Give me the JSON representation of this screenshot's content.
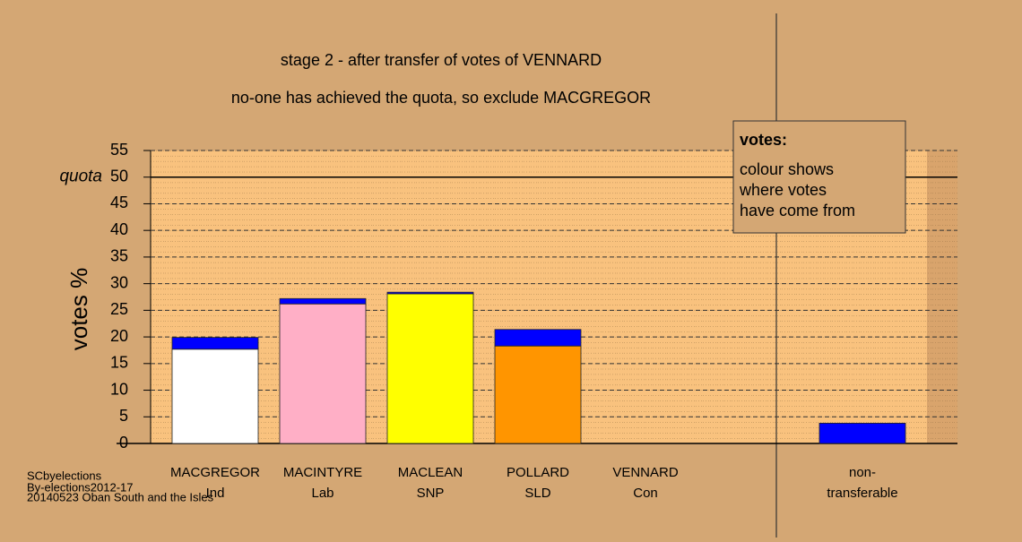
{
  "chart_data": {
    "type": "stacked-bar",
    "title": "stage 2 - after transfer of votes of VENNARD",
    "subtitle": "no-one has achieved the quota, so exclude MACGREGOR",
    "y_label": "votes %",
    "categories": [
      [
        "MACGREGOR",
        "Ind"
      ],
      [
        "MACINTYRE",
        "Lab"
      ],
      [
        "MACLEAN",
        "SNP"
      ],
      [
        "POLLARD",
        "SLD"
      ],
      [
        "VENNARD",
        "Con"
      ],
      [
        "non-",
        "transferable"
      ]
    ],
    "series": [
      {
        "colors": [
          "#ffffff",
          "#ffafc6",
          "#ffff00",
          "#ff9500",
          "#0000ff",
          null
        ],
        "values": [
          17.7,
          26.2,
          28.1,
          18.3,
          0,
          null
        ]
      },
      {
        "color": "#0000ff",
        "values": [
          2.2,
          1.0,
          0.3,
          3.1,
          0,
          3.8
        ]
      }
    ],
    "ylim": [
      0,
      55
    ],
    "yticks": [
      0,
      5,
      10,
      15,
      20,
      25,
      30,
      35,
      40,
      45,
      50,
      55
    ],
    "quota": {
      "value": 50,
      "label": "quota"
    },
    "annotation": {
      "title": "votes:",
      "lines": [
        "colour shows",
        "where votes",
        "have come from"
      ]
    },
    "footer": [
      "SCbyelections",
      "By-elections2012-17",
      "20140523 Oban South and the Isles"
    ],
    "grid": true
  }
}
